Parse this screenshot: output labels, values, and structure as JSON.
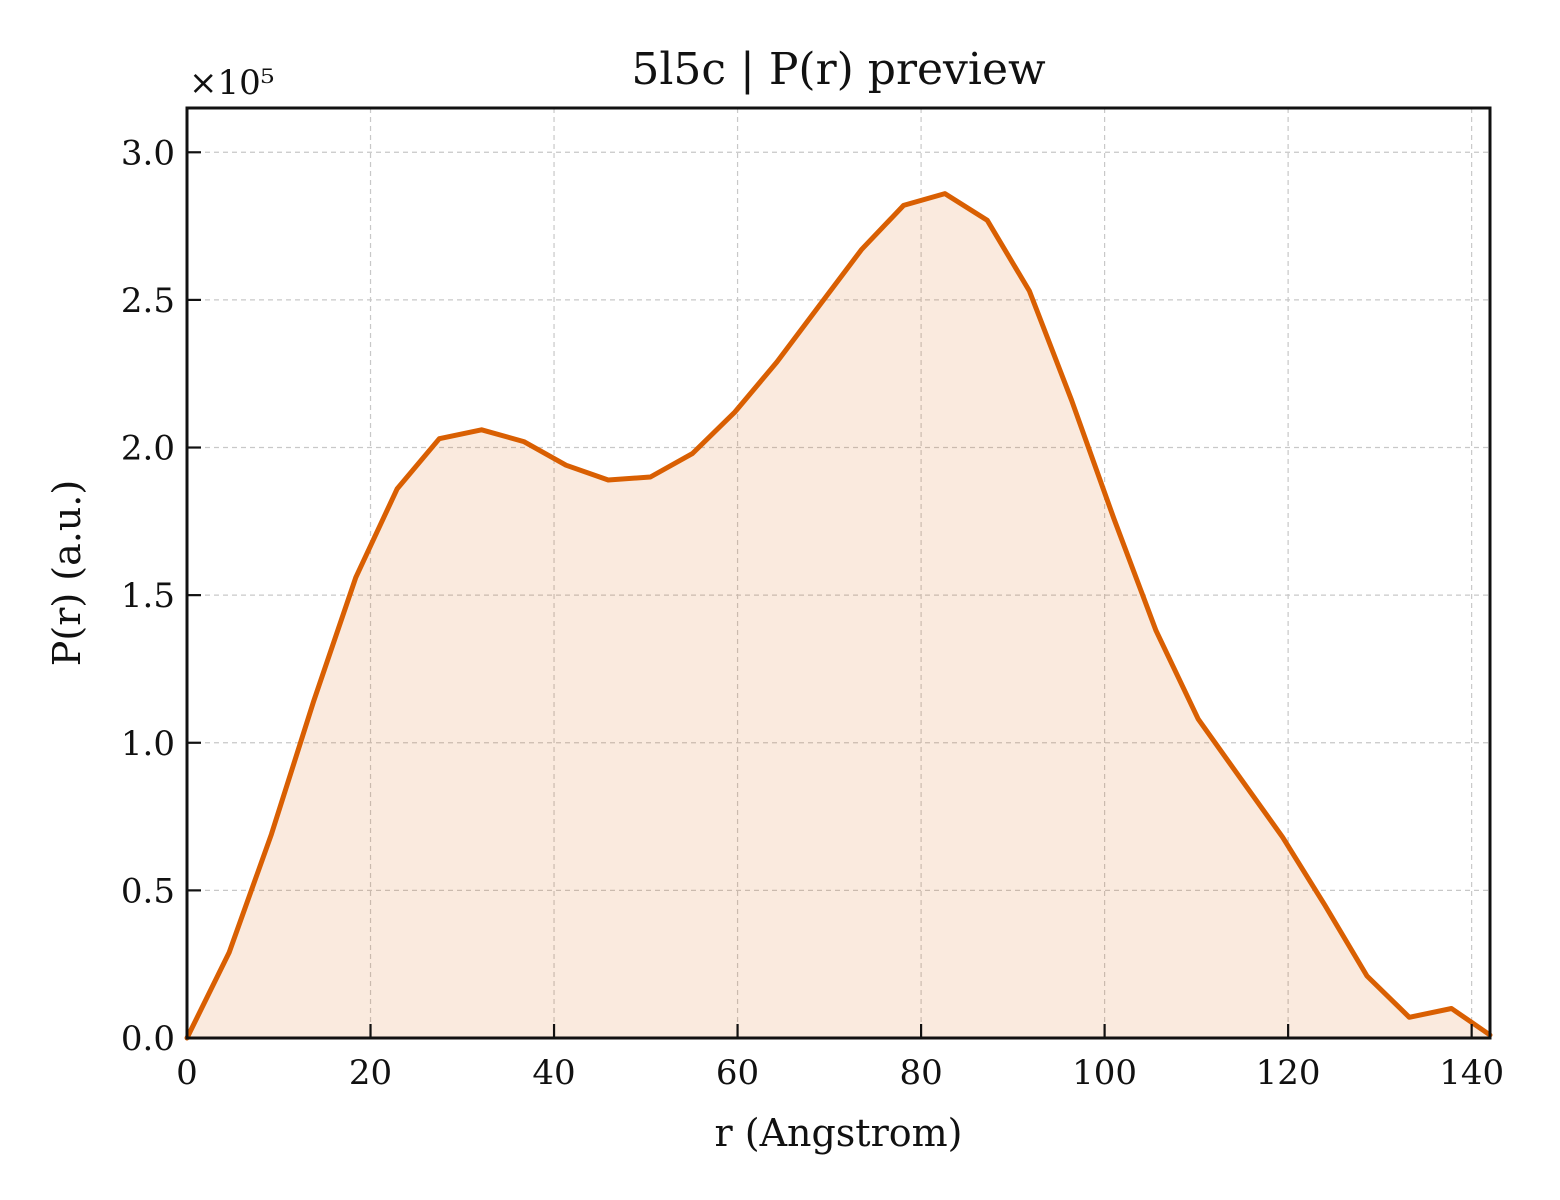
{
  "chart_data": {
    "type": "area",
    "title": "5l5c | P(r) preview",
    "xlabel": "r (Angstrom)",
    "ylabel": "P(r) (a.u.)",
    "y_offset_label": "×10⁵",
    "xlim": [
      0,
      142
    ],
    "ylim": [
      0,
      3.15
    ],
    "y_scale_factor": 100000,
    "grid": true,
    "legend": "none",
    "x_ticks": [
      0,
      20,
      40,
      60,
      80,
      100,
      120,
      140
    ],
    "y_ticks": [
      0.0,
      0.5,
      1.0,
      1.5,
      2.0,
      2.5,
      3.0
    ],
    "x_tick_labels": [
      "0",
      "20",
      "40",
      "60",
      "80",
      "100",
      "120",
      "140"
    ],
    "y_tick_labels": [
      "0.0",
      "0.5",
      "1.0",
      "1.5",
      "2.0",
      "2.5",
      "3.0"
    ],
    "series": [
      {
        "color": "#d95f02",
        "fill_color": "#d95f02",
        "fill_opacity": 0.13,
        "x": [
          0,
          4.6,
          9.2,
          13.8,
          18.4,
          22.9,
          27.5,
          32.1,
          36.7,
          41.3,
          45.9,
          50.5,
          55.1,
          59.7,
          64.3,
          68.9,
          73.5,
          78.1,
          82.6,
          87.2,
          91.8,
          96.4,
          101.0,
          105.6,
          110.2,
          114.8,
          119.4,
          124.0,
          128.6,
          133.2,
          137.8,
          142.0
        ],
        "y": [
          0.0,
          0.29,
          0.69,
          1.14,
          1.56,
          1.86,
          2.03,
          2.06,
          2.02,
          1.94,
          1.89,
          1.9,
          1.98,
          2.12,
          2.29,
          2.48,
          2.67,
          2.82,
          2.86,
          2.77,
          2.53,
          2.16,
          1.76,
          1.38,
          1.08,
          0.88,
          0.68,
          0.45,
          0.21,
          0.07,
          0.1,
          0.01
        ]
      }
    ]
  }
}
